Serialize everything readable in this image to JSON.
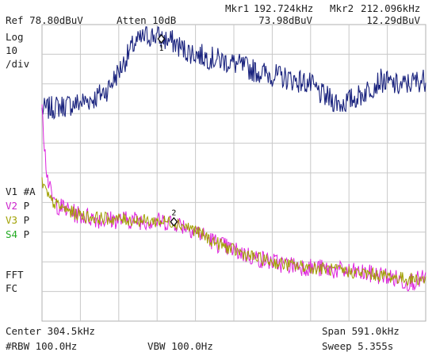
{
  "header": {
    "ref": "Ref 78.80dBuV",
    "atten": "Atten 10dB",
    "mkr1_label": "Mkr1",
    "mkr1_freq": "192.724kHz",
    "mkr1_level": "73.98dBuV",
    "mkr2_label": "Mkr2",
    "mkr2_freq": "212.096kHz",
    "mkr2_level": "12.29dBuV"
  },
  "scale": {
    "line1": "Log",
    "line2": "10",
    "line3": "/div"
  },
  "traces_legend": [
    {
      "id": "V1",
      "mode": "#A",
      "color": "#222222"
    },
    {
      "id": "V2",
      "mode": "P",
      "color": "#cc22cc"
    },
    {
      "id": "V3",
      "mode": "P",
      "color": "#a0a000"
    },
    {
      "id": "S4",
      "mode": "P",
      "color": "#22aa22"
    }
  ],
  "flags": {
    "fft": "FFT",
    "fc": "FC"
  },
  "footer": {
    "center": "Center 304.5kHz",
    "span": "Span 591.0kHz",
    "rbw": "#RBW 100.0Hz",
    "vbw": "VBW 100.0Hz",
    "sweep": "Sweep 5.355s"
  },
  "markers": [
    {
      "label": "1",
      "freq_khz": 192.724,
      "level_dbuv": 73.98
    },
    {
      "label": "2",
      "freq_khz": 212.096,
      "level_dbuv": 12.29
    }
  ],
  "display": {
    "ref_level_dbuv": 78.8,
    "db_per_div": 10,
    "center_khz": 304.5,
    "span_khz": 591.0,
    "divisions": 10,
    "grid_color": "#c8c8c8",
    "trace1_color": "#1a237e",
    "trace2_color": "#dd22dd",
    "trace3_color": "#a0a000"
  },
  "chart_data": {
    "type": "line",
    "xlabel": "",
    "ylabel": "",
    "xlim_khz": [
      9.0,
      600.0
    ],
    "ylim_dbuv": [
      -21.2,
      78.8
    ],
    "series": [
      {
        "name": "V1",
        "x_khz": [
          9,
          30,
          60,
          90,
          110,
          130,
          150,
          170,
          185,
          193,
          210,
          230,
          260,
          300,
          340,
          380,
          420,
          440,
          470,
          500,
          530,
          560,
          590,
          600
        ],
        "y_dbuv": [
          50,
          51,
          52,
          54,
          57,
          64,
          72,
          75,
          75,
          74,
          73,
          70,
          68,
          66,
          63,
          61,
          59,
          55,
          52,
          55,
          60,
          58,
          60,
          60
        ]
      },
      {
        "name": "V2",
        "x_khz": [
          9,
          12,
          16,
          20,
          25,
          32,
          40,
          60,
          80,
          100,
          140,
          180,
          212,
          240,
          270,
          300,
          340,
          380,
          420,
          460,
          500,
          540,
          570,
          600
        ],
        "y_dbuv": [
          55,
          40,
          30,
          24,
          20,
          18,
          17,
          15,
          14,
          13,
          13,
          12.5,
          12.3,
          10,
          6,
          3,
          0,
          -2,
          -3,
          -4,
          -5,
          -6,
          -8,
          -7
        ]
      },
      {
        "name": "V3",
        "x_khz": [
          9,
          12,
          16,
          20,
          25,
          32,
          40,
          60,
          80,
          100,
          140,
          180,
          212,
          240,
          270,
          300,
          340,
          380,
          420,
          460,
          500,
          540,
          570,
          600
        ],
        "y_dbuv": [
          26,
          24,
          22,
          20,
          19,
          18,
          17,
          15,
          14,
          13.5,
          13,
          12.5,
          12.3,
          10,
          6,
          3,
          0,
          -2,
          -3,
          -4,
          -5,
          -6,
          -7,
          -7
        ]
      }
    ]
  }
}
